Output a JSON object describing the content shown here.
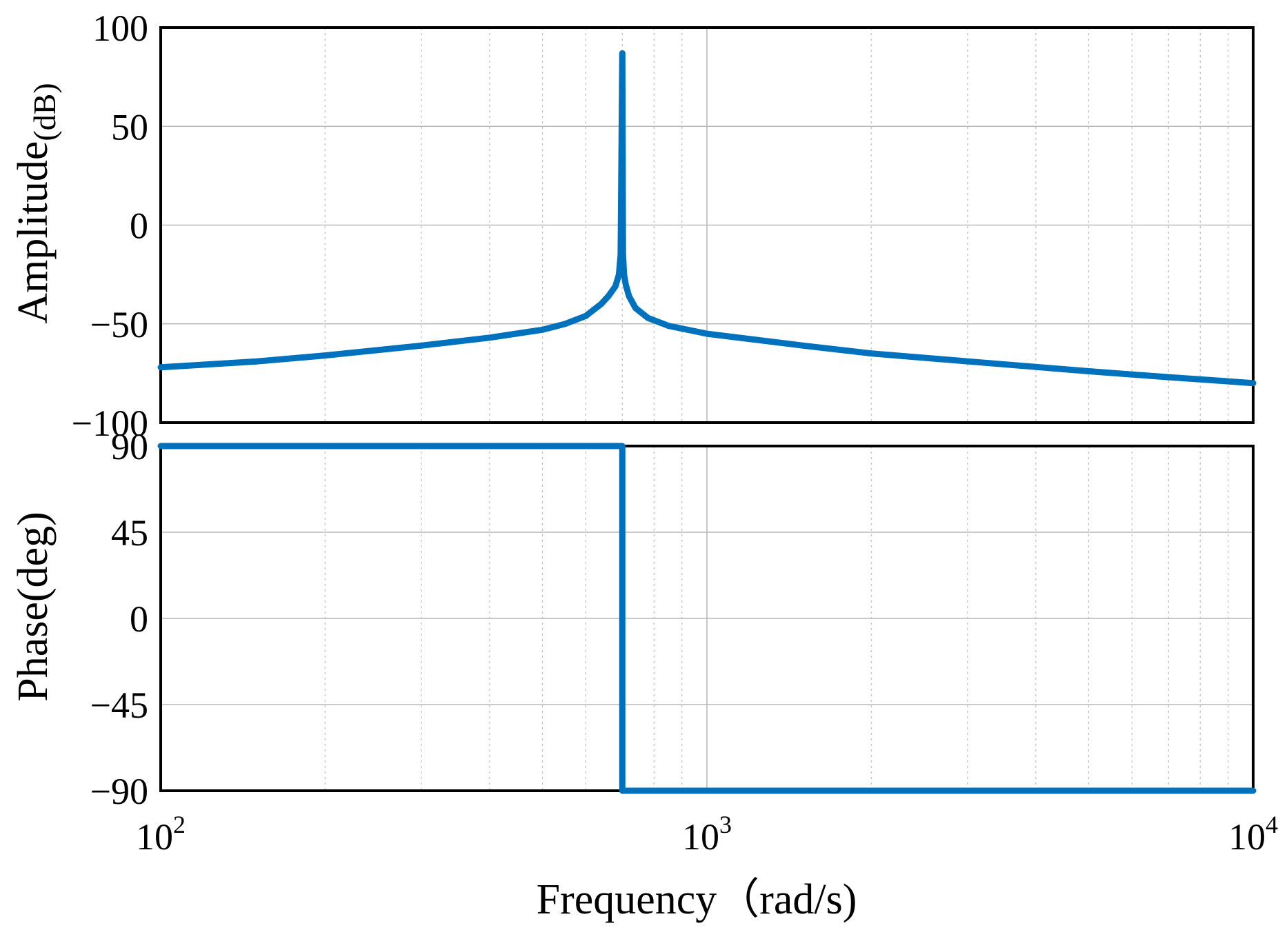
{
  "chart_data": [
    {
      "type": "line",
      "panel": "magnitude",
      "ylabel_main": "Amplitude",
      "ylabel_unit": "(dB)",
      "x_scale": "log",
      "xlim": [
        100,
        10000
      ],
      "ylim": [
        -100,
        100
      ],
      "y_ticks": [
        100,
        50,
        0,
        -50,
        -100
      ],
      "y_tick_labels": [
        "100",
        "50",
        "0",
        "−50",
        "−100"
      ],
      "grid": true,
      "series": [
        {
          "color": "#0072bd",
          "x": [
            100,
            150,
            200,
            300,
            400,
            500,
            550,
            600,
            640,
            660,
            680,
            690,
            695,
            700,
            702,
            705,
            710,
            720,
            740,
            780,
            850,
            1000,
            1500,
            2000,
            3000,
            5000,
            7000,
            10000
          ],
          "y": [
            -72,
            -69,
            -66,
            -61,
            -57,
            -53,
            -50,
            -46,
            -40,
            -36,
            -31,
            -25,
            -15,
            87,
            -15,
            -25,
            -30,
            -36,
            -42,
            -47,
            -51,
            -55,
            -61,
            -65,
            -69,
            -74,
            -77,
            -80
          ]
        }
      ]
    },
    {
      "type": "line",
      "panel": "phase",
      "ylabel": "Phase(deg)",
      "xlabel": "Frequency（rad/s)",
      "x_scale": "log",
      "xlim": [
        100,
        10000
      ],
      "ylim": [
        -90,
        90
      ],
      "y_ticks": [
        90,
        45,
        0,
        -45,
        -90
      ],
      "y_tick_labels": [
        "90",
        "45",
        "0",
        "−45",
        "−90"
      ],
      "x_ticks": [
        100,
        1000,
        10000
      ],
      "x_tick_labels": [
        {
          "base": "10",
          "exp": "2"
        },
        {
          "base": "10",
          "exp": "3"
        },
        {
          "base": "10",
          "exp": "4"
        }
      ],
      "grid": true,
      "series": [
        {
          "color": "#0072bd",
          "x": [
            100,
            700,
            700,
            10000
          ],
          "y": [
            90,
            90,
            -90,
            -90
          ]
        }
      ]
    }
  ]
}
